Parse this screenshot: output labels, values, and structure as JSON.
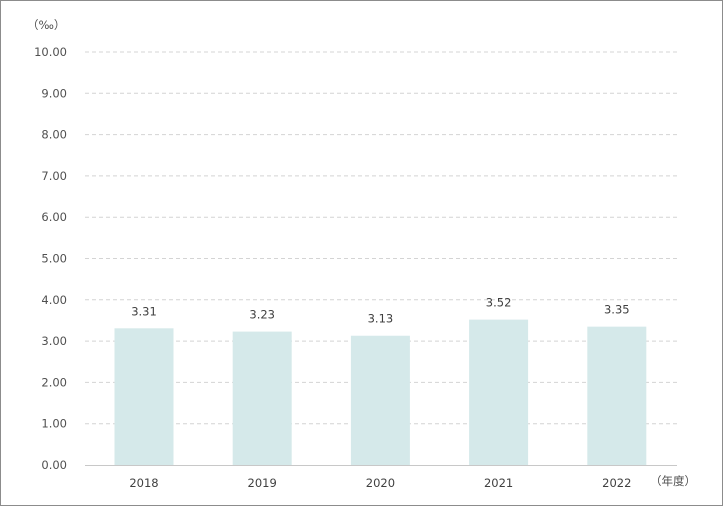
{
  "chart_data": {
    "type": "bar",
    "title": "",
    "ylabel": "（‰）",
    "xlabel": "（年度）",
    "categories": [
      "2018",
      "2019",
      "2020",
      "2021",
      "2022"
    ],
    "values": [
      3.31,
      3.23,
      3.13,
      3.52,
      3.35
    ],
    "data_labels": [
      "3.31",
      "3.23",
      "3.13",
      "3.52",
      "3.35"
    ],
    "yticks": [
      "0.00",
      "1.00",
      "2.00",
      "3.00",
      "4.00",
      "5.00",
      "6.00",
      "7.00",
      "8.00",
      "9.00",
      "10.00"
    ],
    "ylim": [
      0,
      10
    ],
    "grid": true,
    "legend": "none",
    "bar_color": "#d5e9ea"
  }
}
